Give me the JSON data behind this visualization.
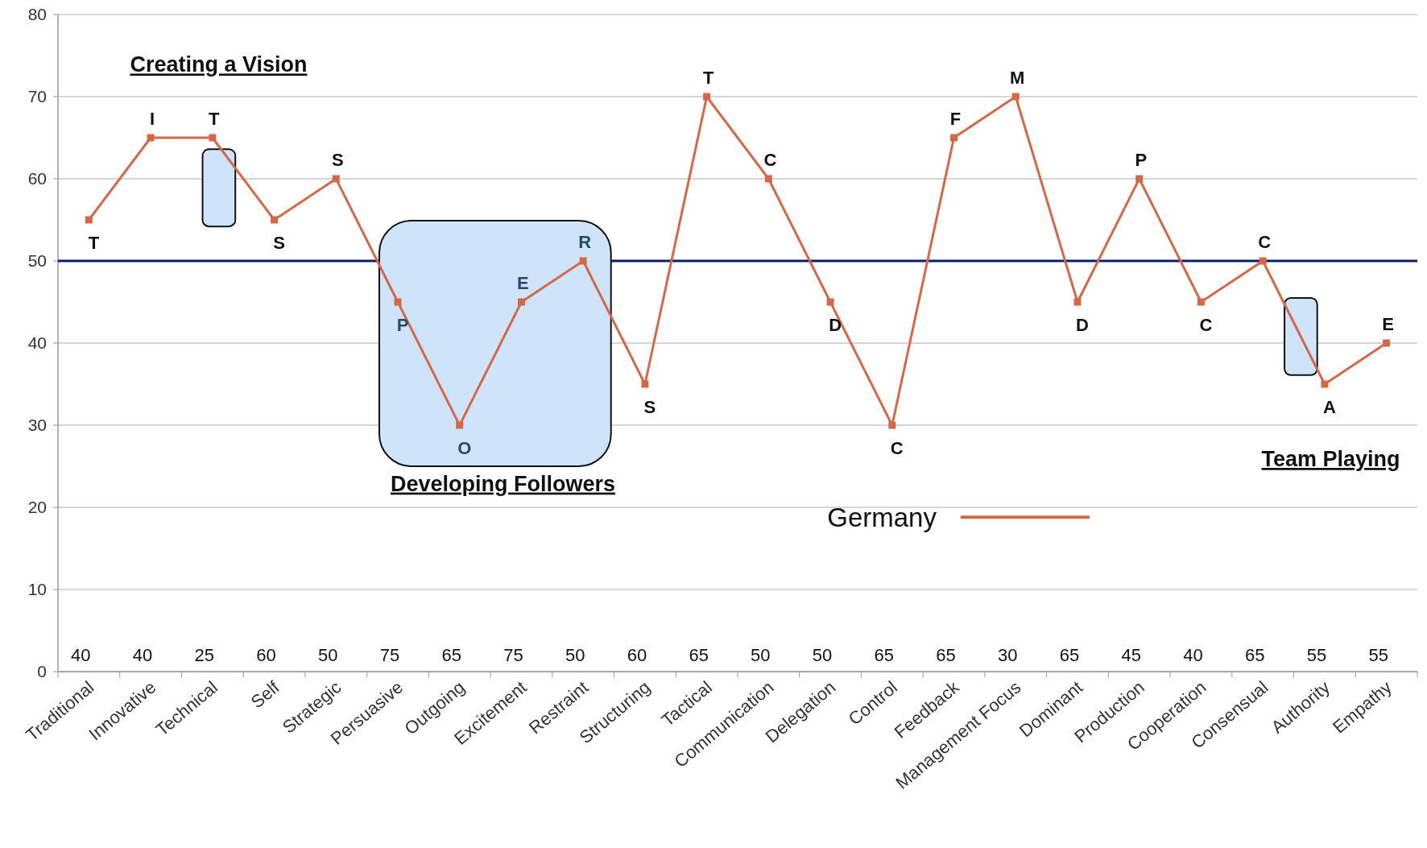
{
  "chart_data": {
    "type": "line",
    "categories": [
      "Traditional",
      "Innovative",
      "Technical",
      "Self",
      "Strategic",
      "Persuasive",
      "Outgoing",
      "Excitement",
      "Restraint",
      "Structuring",
      "Tactical",
      "Communication",
      "Delegation",
      "Control",
      "Feedback",
      "Management Focus",
      "Dominant",
      "Production",
      "Cooperation",
      "Consensual",
      "Authority",
      "Empathy"
    ],
    "series": [
      {
        "name": "Germany",
        "color": "#d4694a",
        "values": [
          55,
          65,
          65,
          55,
          60,
          45,
          30,
          45,
          50,
          35,
          70,
          60,
          45,
          30,
          65,
          70,
          45,
          60,
          45,
          50,
          35,
          40
        ]
      }
    ],
    "ylim": [
      0,
      80
    ],
    "yticks": [
      0,
      10,
      20,
      30,
      40,
      50,
      60,
      70,
      80
    ],
    "grid": "y",
    "marker": "square",
    "line_style": "solid",
    "legend": "bottom",
    "ref_lines": [
      {
        "axis": "y",
        "value": 50,
        "color": "#0b1f66"
      }
    ],
    "annotations": [
      "Creating a Vision",
      "Developing Followers",
      "Team Playing",
      {
        "text": "T",
        "x": "Traditional",
        "y": 55
      },
      {
        "text": "I",
        "x": "Innovative",
        "y": 65
      },
      {
        "text": "T",
        "x": "Technical",
        "y": 65
      },
      {
        "text": "S",
        "x": "Self",
        "y": 55
      },
      {
        "text": "S",
        "x": "Strategic",
        "y": 60
      },
      {
        "text": "P",
        "x": "Persuasive",
        "y": 45
      },
      {
        "text": "O",
        "x": "Outgoing",
        "y": 30
      },
      {
        "text": "E",
        "x": "Excitement",
        "y": 45
      },
      {
        "text": "R",
        "x": "Restraint",
        "y": 50
      },
      {
        "text": "S",
        "x": "Structuring",
        "y": 35
      },
      {
        "text": "T",
        "x": "Tactical",
        "y": 70
      },
      {
        "text": "C",
        "x": "Communication",
        "y": 60
      },
      {
        "text": "D",
        "x": "Delegation",
        "y": 45
      },
      {
        "text": "C",
        "x": "Control",
        "y": 30
      },
      {
        "text": "F",
        "x": "Feedback",
        "y": 65
      },
      {
        "text": "M",
        "x": "Management Focus",
        "y": 70
      },
      {
        "text": "D",
        "x": "Dominant",
        "y": 45
      },
      {
        "text": "P",
        "x": "Production",
        "y": 60
      },
      {
        "text": "C",
        "x": "Cooperation",
        "y": 45
      },
      {
        "text": "C",
        "x": "Consensual",
        "y": 50
      },
      {
        "text": "A",
        "x": "Authority",
        "y": 35
      },
      {
        "text": "E",
        "x": "Empathy",
        "y": 40
      },
      "40",
      "40",
      "25",
      "60",
      "50",
      "75",
      "65",
      "75",
      "50",
      "60",
      "65",
      "50",
      "50",
      "65",
      "65",
      "30",
      "65",
      "45",
      "40",
      "65",
      "55",
      "55"
    ]
  }
}
